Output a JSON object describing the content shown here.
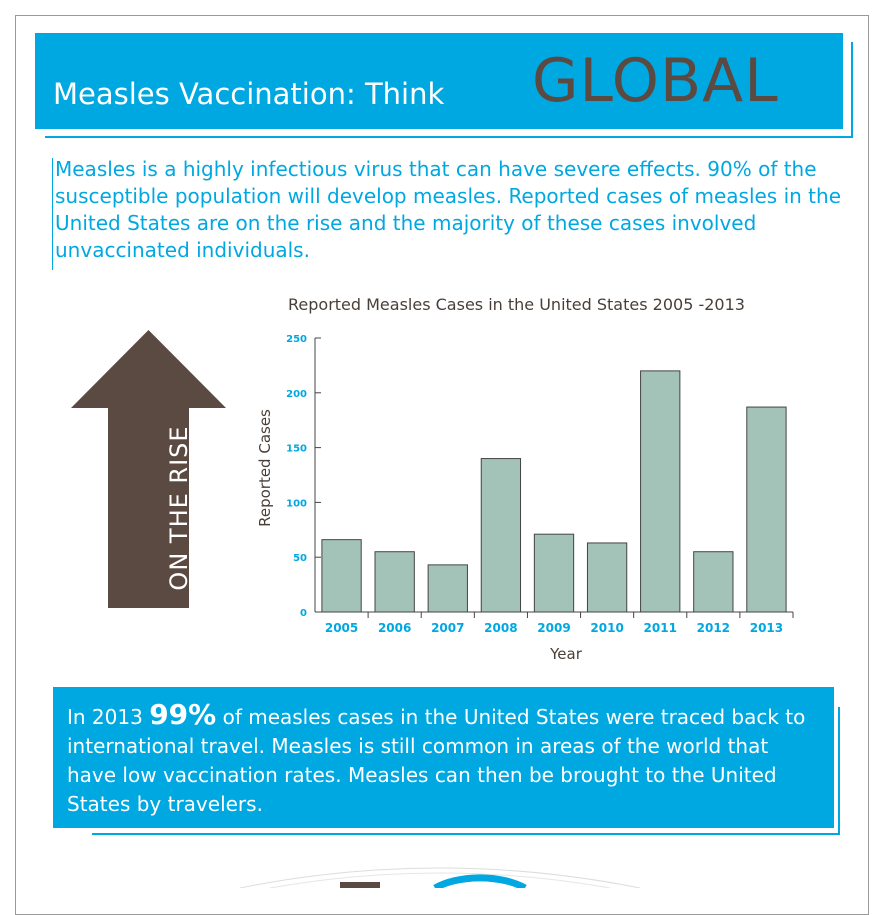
{
  "header": {
    "title_prefix": "Measles Vaccination:  Think",
    "title_emphasis": "GLOBAL"
  },
  "intro": {
    "text": "Measles is a highly infectious virus that can have severe effects.  90% of the susceptible population will develop measles.  Reported cases of measles in the United States are on the rise and the majority of these cases involved unvaccinated individuals."
  },
  "arrow": {
    "label": "ON THE RISE",
    "color": "#5b4a41"
  },
  "chart_data": {
    "type": "bar",
    "title": "Reported Measles Cases in the United States 2005 -2013",
    "xlabel": "Year",
    "ylabel": "Reported Cases",
    "categories": [
      "2005",
      "2006",
      "2007",
      "2008",
      "2009",
      "2010",
      "2011",
      "2012",
      "2013"
    ],
    "values": [
      66,
      55,
      43,
      140,
      71,
      63,
      220,
      55,
      187
    ],
    "ylim": [
      0,
      250
    ],
    "yticks": [
      "0",
      "50",
      "100",
      "150",
      "200",
      "250"
    ],
    "grid": false,
    "legend": "none",
    "bar_color": "#a3c2b8",
    "tick_color": "#00a8e1"
  },
  "info": {
    "prefix": "In 2013 ",
    "stat": "99%",
    "text": " of measles cases in the United States were traced back to international travel.  Measles is still common in areas of the world that have low vaccination rates.  Measles can then be brought to the United States by travelers."
  },
  "colors": {
    "accent": "#00a8e1",
    "brown": "#5b4a41",
    "bar": "#a3c2b8"
  }
}
